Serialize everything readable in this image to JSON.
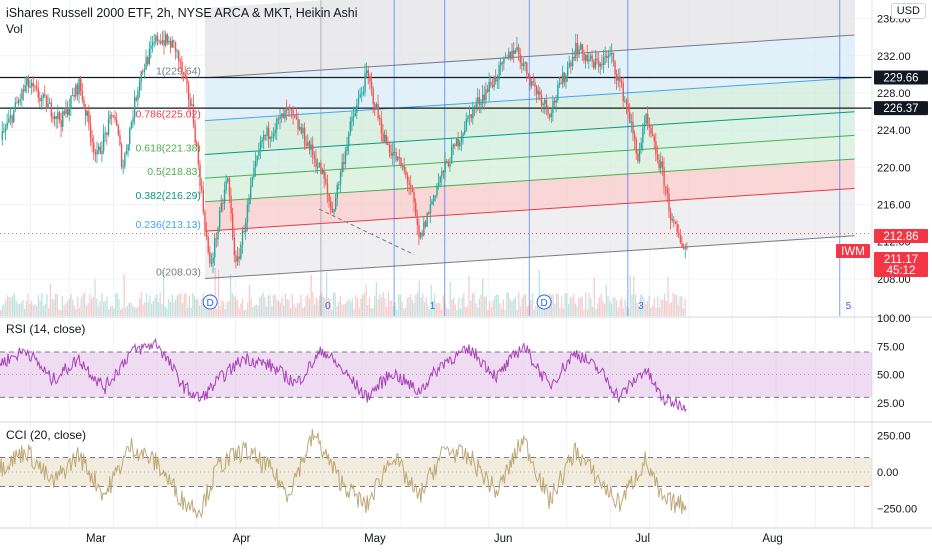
{
  "header": {
    "title": "iShares Russell 2000 ETF, 2h, NYSE ARCA & MKT, Heikin Ashi",
    "volume_label": "Vol",
    "currency": "USD"
  },
  "colors": {
    "up": "#26a69a",
    "down": "#ef5350",
    "rsi": "#9c27b0",
    "cci": "#b8a06a",
    "blue_line": "#2962ff"
  },
  "price_tags": [
    {
      "label": "229.66",
      "value": 229.66,
      "kind": "level"
    },
    {
      "label": "226.37",
      "value": 226.37,
      "kind": "level"
    },
    {
      "label": "212.86",
      "value": 212.86,
      "kind": "red"
    },
    {
      "label": "IWM",
      "value": 211.5,
      "kind": "ticker"
    },
    {
      "label": "211.17",
      "value": 211.17,
      "kind": "last"
    },
    {
      "label": "45:12",
      "value": 210.1,
      "kind": "countdown"
    }
  ],
  "panes": {
    "rsi_label": "RSI (14, close)",
    "cci_label": "CCI (20, close)"
  },
  "fib_labels": [
    {
      "text": "1(229.64)",
      "value": 229.64
    },
    {
      "text": "0.786(225.02)",
      "value": 225.02
    },
    {
      "text": "0.618(221.38)",
      "value": 221.38
    },
    {
      "text": "0.5(218.83)",
      "value": 218.83
    },
    {
      "text": "0.382(216.29)",
      "value": 216.29
    },
    {
      "text": "0.236(213.13)",
      "value": 213.13
    },
    {
      "text": "0(208.03)",
      "value": 208.03
    }
  ],
  "event_markers": [
    "D",
    "D"
  ],
  "cycle_labels": [
    "0",
    "1",
    "3",
    "5"
  ],
  "chart_data": [
    {
      "type": "candlestick",
      "title": "iShares Russell 2000 ETF, 2h, NYSE ARCA & MKT, Heikin Ashi",
      "x_ticks": [
        "Mar",
        "Apr",
        "May",
        "Jun",
        "Jul",
        "Aug"
      ],
      "y_ticks": [
        208.0,
        212.0,
        216.0,
        220.0,
        224.0,
        228.0,
        232.0,
        236.0
      ],
      "y_tick_labels": [
        "208.00",
        "212.00",
        "216.00",
        "220.00",
        "224.00",
        "228.00",
        "232.00",
        "236.00"
      ],
      "ylim": [
        204.0,
        238.0
      ],
      "horizontal_levels": [
        229.66,
        226.37
      ],
      "last_price": 211.17,
      "price_points": [
        [
          0,
          223
        ],
        [
          0.03,
          229
        ],
        [
          0.05,
          227
        ],
        [
          0.07,
          225
        ],
        [
          0.09,
          229
        ],
        [
          0.11,
          221
        ],
        [
          0.13,
          226
        ],
        [
          0.14,
          220
        ],
        [
          0.16,
          230
        ],
        [
          0.18,
          234
        ],
        [
          0.2,
          233
        ],
        [
          0.22,
          226
        ],
        [
          0.24,
          209
        ],
        [
          0.26,
          219
        ],
        [
          0.27,
          209
        ],
        [
          0.29,
          219
        ],
        [
          0.3,
          223
        ],
        [
          0.33,
          226
        ],
        [
          0.35,
          223
        ],
        [
          0.37,
          219
        ],
        [
          0.38,
          215
        ],
        [
          0.4,
          224
        ],
        [
          0.42,
          230
        ],
        [
          0.44,
          223
        ],
        [
          0.46,
          220
        ],
        [
          0.47,
          218
        ],
        [
          0.48,
          212
        ],
        [
          0.5,
          218
        ],
        [
          0.52,
          222
        ],
        [
          0.54,
          226
        ],
        [
          0.57,
          230
        ],
        [
          0.59,
          233
        ],
        [
          0.61,
          229
        ],
        [
          0.63,
          226
        ],
        [
          0.66,
          233
        ],
        [
          0.68,
          231
        ],
        [
          0.7,
          232
        ],
        [
          0.72,
          226
        ],
        [
          0.73,
          221
        ],
        [
          0.74,
          225
        ],
        [
          0.75,
          222
        ],
        [
          0.76,
          219
        ],
        [
          0.77,
          214
        ],
        [
          0.78,
          212
        ],
        [
          0.787,
          211.17
        ]
      ],
      "volume_max_label": "",
      "fib_channel": {
        "levels": [
          0,
          0.236,
          0.382,
          0.5,
          0.618,
          0.786,
          1
        ],
        "prices": [
          208.03,
          213.13,
          216.29,
          218.83,
          221.38,
          225.02,
          229.64
        ]
      }
    },
    {
      "type": "line",
      "title": "RSI (14, close)",
      "y_ticks": [
        25,
        50,
        75,
        100
      ],
      "y_tick_labels": [
        "25.00",
        "50.00",
        "75.00",
        "100.00"
      ],
      "ylim": [
        10,
        100
      ],
      "band": [
        30,
        70
      ],
      "points": [
        [
          0,
          60
        ],
        [
          0.03,
          72
        ],
        [
          0.06,
          45
        ],
        [
          0.09,
          64
        ],
        [
          0.12,
          38
        ],
        [
          0.15,
          70
        ],
        [
          0.18,
          78
        ],
        [
          0.21,
          40
        ],
        [
          0.23,
          28
        ],
        [
          0.25,
          45
        ],
        [
          0.28,
          65
        ],
        [
          0.31,
          58
        ],
        [
          0.34,
          42
        ],
        [
          0.37,
          72
        ],
        [
          0.4,
          48
        ],
        [
          0.42,
          30
        ],
        [
          0.45,
          52
        ],
        [
          0.48,
          35
        ],
        [
          0.51,
          62
        ],
        [
          0.54,
          72
        ],
        [
          0.57,
          48
        ],
        [
          0.6,
          76
        ],
        [
          0.63,
          40
        ],
        [
          0.66,
          70
        ],
        [
          0.69,
          52
        ],
        [
          0.71,
          30
        ],
        [
          0.74,
          55
        ],
        [
          0.76,
          28
        ],
        [
          0.787,
          23
        ]
      ]
    },
    {
      "type": "line",
      "title": "CCI (20, close)",
      "y_ticks": [
        -250,
        0,
        250
      ],
      "y_tick_labels": [
        "−250.00",
        "0.00",
        "250.00"
      ],
      "ylim": [
        -330,
        330
      ],
      "band": [
        -100,
        100
      ],
      "points": [
        [
          0,
          30
        ],
        [
          0.03,
          150
        ],
        [
          0.06,
          -80
        ],
        [
          0.09,
          120
        ],
        [
          0.12,
          -160
        ],
        [
          0.15,
          180
        ],
        [
          0.18,
          60
        ],
        [
          0.21,
          -200
        ],
        [
          0.23,
          -260
        ],
        [
          0.25,
          40
        ],
        [
          0.28,
          150
        ],
        [
          0.31,
          20
        ],
        [
          0.33,
          -150
        ],
        [
          0.36,
          260
        ],
        [
          0.39,
          -60
        ],
        [
          0.42,
          -240
        ],
        [
          0.45,
          120
        ],
        [
          0.48,
          -180
        ],
        [
          0.51,
          160
        ],
        [
          0.54,
          90
        ],
        [
          0.57,
          -140
        ],
        [
          0.6,
          230
        ],
        [
          0.63,
          -200
        ],
        [
          0.66,
          150
        ],
        [
          0.69,
          -80
        ],
        [
          0.71,
          -220
        ],
        [
          0.74,
          80
        ],
        [
          0.76,
          -200
        ],
        [
          0.787,
          -230
        ]
      ]
    }
  ]
}
